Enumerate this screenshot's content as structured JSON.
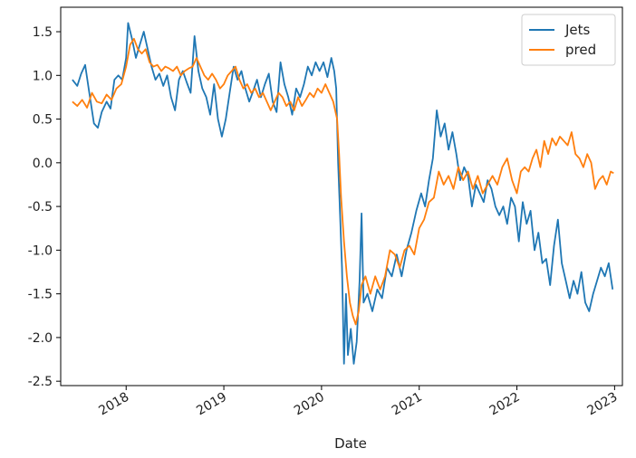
{
  "chart_data": {
    "type": "line",
    "title": "",
    "xlabel": "Date",
    "ylabel": "",
    "x_ticks": [
      "2018",
      "2019",
      "2020",
      "2021",
      "2022",
      "2023"
    ],
    "y_ticks": [
      -2.5,
      -2.0,
      -1.5,
      -1.0,
      -0.5,
      0.0,
      0.5,
      1.0,
      1.5
    ],
    "xlim": [
      2017.33,
      2023.08
    ],
    "ylim": [
      -2.55,
      1.78
    ],
    "grid": false,
    "legend": "top-right",
    "series": [
      {
        "name": "Jets",
        "color": "#1f77b4",
        "points": [
          [
            2017.45,
            0.95
          ],
          [
            2017.5,
            0.88
          ],
          [
            2017.54,
            1.02
          ],
          [
            2017.58,
            1.12
          ],
          [
            2017.62,
            0.82
          ],
          [
            2017.67,
            0.45
          ],
          [
            2017.71,
            0.4
          ],
          [
            2017.75,
            0.58
          ],
          [
            2017.8,
            0.7
          ],
          [
            2017.84,
            0.62
          ],
          [
            2017.88,
            0.95
          ],
          [
            2017.92,
            1.0
          ],
          [
            2017.96,
            0.95
          ],
          [
            2018.0,
            1.2
          ],
          [
            2018.02,
            1.6
          ],
          [
            2018.06,
            1.42
          ],
          [
            2018.1,
            1.2
          ],
          [
            2018.14,
            1.35
          ],
          [
            2018.18,
            1.5
          ],
          [
            2018.22,
            1.3
          ],
          [
            2018.26,
            1.1
          ],
          [
            2018.3,
            0.95
          ],
          [
            2018.34,
            1.02
          ],
          [
            2018.38,
            0.88
          ],
          [
            2018.42,
            1.0
          ],
          [
            2018.46,
            0.75
          ],
          [
            2018.5,
            0.6
          ],
          [
            2018.54,
            0.95
          ],
          [
            2018.58,
            1.05
          ],
          [
            2018.62,
            0.92
          ],
          [
            2018.66,
            0.8
          ],
          [
            2018.7,
            1.45
          ],
          [
            2018.74,
            1.05
          ],
          [
            2018.78,
            0.85
          ],
          [
            2018.82,
            0.75
          ],
          [
            2018.86,
            0.55
          ],
          [
            2018.9,
            0.9
          ],
          [
            2018.94,
            0.5
          ],
          [
            2018.98,
            0.3
          ],
          [
            2019.02,
            0.5
          ],
          [
            2019.06,
            0.8
          ],
          [
            2019.1,
            1.1
          ],
          [
            2019.14,
            0.95
          ],
          [
            2019.18,
            1.05
          ],
          [
            2019.22,
            0.85
          ],
          [
            2019.26,
            0.7
          ],
          [
            2019.3,
            0.82
          ],
          [
            2019.34,
            0.95
          ],
          [
            2019.38,
            0.75
          ],
          [
            2019.42,
            0.9
          ],
          [
            2019.46,
            1.02
          ],
          [
            2019.5,
            0.7
          ],
          [
            2019.54,
            0.58
          ],
          [
            2019.58,
            1.15
          ],
          [
            2019.62,
            0.9
          ],
          [
            2019.66,
            0.75
          ],
          [
            2019.7,
            0.55
          ],
          [
            2019.74,
            0.85
          ],
          [
            2019.78,
            0.75
          ],
          [
            2019.82,
            0.9
          ],
          [
            2019.86,
            1.1
          ],
          [
            2019.9,
            1.0
          ],
          [
            2019.94,
            1.15
          ],
          [
            2019.98,
            1.05
          ],
          [
            2020.02,
            1.15
          ],
          [
            2020.06,
            0.98
          ],
          [
            2020.1,
            1.2
          ],
          [
            2020.13,
            1.05
          ],
          [
            2020.15,
            0.85
          ],
          [
            2020.17,
            0.0
          ],
          [
            2020.19,
            -0.6
          ],
          [
            2020.21,
            -1.2
          ],
          [
            2020.23,
            -2.3
          ],
          [
            2020.25,
            -1.5
          ],
          [
            2020.27,
            -2.2
          ],
          [
            2020.3,
            -1.9
          ],
          [
            2020.33,
            -2.3
          ],
          [
            2020.36,
            -2.05
          ],
          [
            2020.39,
            -1.35
          ],
          [
            2020.41,
            -0.58
          ],
          [
            2020.43,
            -1.6
          ],
          [
            2020.47,
            -1.5
          ],
          [
            2020.52,
            -1.7
          ],
          [
            2020.57,
            -1.45
          ],
          [
            2020.62,
            -1.55
          ],
          [
            2020.67,
            -1.2
          ],
          [
            2020.72,
            -1.3
          ],
          [
            2020.77,
            -1.05
          ],
          [
            2020.82,
            -1.3
          ],
          [
            2020.87,
            -1.0
          ],
          [
            2020.92,
            -0.8
          ],
          [
            2020.97,
            -0.55
          ],
          [
            2021.02,
            -0.35
          ],
          [
            2021.06,
            -0.5
          ],
          [
            2021.1,
            -0.2
          ],
          [
            2021.14,
            0.05
          ],
          [
            2021.18,
            0.6
          ],
          [
            2021.22,
            0.3
          ],
          [
            2021.26,
            0.45
          ],
          [
            2021.3,
            0.15
          ],
          [
            2021.34,
            0.35
          ],
          [
            2021.38,
            0.1
          ],
          [
            2021.42,
            -0.2
          ],
          [
            2021.46,
            -0.05
          ],
          [
            2021.5,
            -0.15
          ],
          [
            2021.54,
            -0.5
          ],
          [
            2021.58,
            -0.25
          ],
          [
            2021.62,
            -0.35
          ],
          [
            2021.66,
            -0.45
          ],
          [
            2021.7,
            -0.2
          ],
          [
            2021.74,
            -0.3
          ],
          [
            2021.78,
            -0.5
          ],
          [
            2021.82,
            -0.6
          ],
          [
            2021.86,
            -0.5
          ],
          [
            2021.9,
            -0.7
          ],
          [
            2021.94,
            -0.4
          ],
          [
            2021.98,
            -0.5
          ],
          [
            2022.02,
            -0.9
          ],
          [
            2022.06,
            -0.45
          ],
          [
            2022.1,
            -0.7
          ],
          [
            2022.14,
            -0.55
          ],
          [
            2022.18,
            -1.0
          ],
          [
            2022.22,
            -0.8
          ],
          [
            2022.26,
            -1.15
          ],
          [
            2022.3,
            -1.1
          ],
          [
            2022.34,
            -1.4
          ],
          [
            2022.38,
            -0.95
          ],
          [
            2022.42,
            -0.65
          ],
          [
            2022.46,
            -1.15
          ],
          [
            2022.5,
            -1.35
          ],
          [
            2022.54,
            -1.55
          ],
          [
            2022.58,
            -1.35
          ],
          [
            2022.62,
            -1.5
          ],
          [
            2022.66,
            -1.25
          ],
          [
            2022.7,
            -1.6
          ],
          [
            2022.74,
            -1.7
          ],
          [
            2022.78,
            -1.5
          ],
          [
            2022.82,
            -1.35
          ],
          [
            2022.86,
            -1.2
          ],
          [
            2022.9,
            -1.3
          ],
          [
            2022.94,
            -1.15
          ],
          [
            2022.98,
            -1.45
          ]
        ]
      },
      {
        "name": "pred",
        "color": "#ff7f0e",
        "points": [
          [
            2017.45,
            0.7
          ],
          [
            2017.5,
            0.65
          ],
          [
            2017.55,
            0.72
          ],
          [
            2017.6,
            0.63
          ],
          [
            2017.65,
            0.8
          ],
          [
            2017.7,
            0.7
          ],
          [
            2017.75,
            0.68
          ],
          [
            2017.8,
            0.78
          ],
          [
            2017.85,
            0.72
          ],
          [
            2017.9,
            0.85
          ],
          [
            2017.95,
            0.9
          ],
          [
            2018.0,
            1.1
          ],
          [
            2018.04,
            1.35
          ],
          [
            2018.08,
            1.42
          ],
          [
            2018.12,
            1.3
          ],
          [
            2018.16,
            1.25
          ],
          [
            2018.2,
            1.3
          ],
          [
            2018.24,
            1.15
          ],
          [
            2018.28,
            1.1
          ],
          [
            2018.32,
            1.12
          ],
          [
            2018.36,
            1.05
          ],
          [
            2018.4,
            1.1
          ],
          [
            2018.44,
            1.08
          ],
          [
            2018.48,
            1.05
          ],
          [
            2018.52,
            1.1
          ],
          [
            2018.56,
            1.0
          ],
          [
            2018.6,
            1.05
          ],
          [
            2018.64,
            1.08
          ],
          [
            2018.68,
            1.1
          ],
          [
            2018.72,
            1.2
          ],
          [
            2018.76,
            1.1
          ],
          [
            2018.8,
            1.0
          ],
          [
            2018.84,
            0.95
          ],
          [
            2018.88,
            1.02
          ],
          [
            2018.92,
            0.95
          ],
          [
            2018.96,
            0.85
          ],
          [
            2019.0,
            0.9
          ],
          [
            2019.04,
            1.0
          ],
          [
            2019.08,
            1.05
          ],
          [
            2019.12,
            1.1
          ],
          [
            2019.16,
            0.95
          ],
          [
            2019.2,
            0.85
          ],
          [
            2019.24,
            0.9
          ],
          [
            2019.28,
            0.8
          ],
          [
            2019.32,
            0.85
          ],
          [
            2019.36,
            0.75
          ],
          [
            2019.4,
            0.8
          ],
          [
            2019.44,
            0.7
          ],
          [
            2019.48,
            0.6
          ],
          [
            2019.52,
            0.7
          ],
          [
            2019.56,
            0.8
          ],
          [
            2019.6,
            0.75
          ],
          [
            2019.64,
            0.65
          ],
          [
            2019.68,
            0.7
          ],
          [
            2019.72,
            0.6
          ],
          [
            2019.76,
            0.75
          ],
          [
            2019.8,
            0.65
          ],
          [
            2019.84,
            0.72
          ],
          [
            2019.88,
            0.8
          ],
          [
            2019.92,
            0.75
          ],
          [
            2019.96,
            0.85
          ],
          [
            2020.0,
            0.8
          ],
          [
            2020.04,
            0.9
          ],
          [
            2020.08,
            0.8
          ],
          [
            2020.12,
            0.7
          ],
          [
            2020.16,
            0.5
          ],
          [
            2020.18,
            0.1
          ],
          [
            2020.2,
            -0.4
          ],
          [
            2020.23,
            -0.9
          ],
          [
            2020.26,
            -1.3
          ],
          [
            2020.29,
            -1.6
          ],
          [
            2020.32,
            -1.75
          ],
          [
            2020.35,
            -1.85
          ],
          [
            2020.38,
            -1.7
          ],
          [
            2020.41,
            -1.4
          ],
          [
            2020.45,
            -1.3
          ],
          [
            2020.5,
            -1.5
          ],
          [
            2020.55,
            -1.3
          ],
          [
            2020.6,
            -1.45
          ],
          [
            2020.65,
            -1.3
          ],
          [
            2020.7,
            -1.0
          ],
          [
            2020.75,
            -1.05
          ],
          [
            2020.8,
            -1.2
          ],
          [
            2020.85,
            -1.0
          ],
          [
            2020.9,
            -0.95
          ],
          [
            2020.95,
            -1.05
          ],
          [
            2021.0,
            -0.75
          ],
          [
            2021.05,
            -0.65
          ],
          [
            2021.1,
            -0.45
          ],
          [
            2021.15,
            -0.4
          ],
          [
            2021.2,
            -0.1
          ],
          [
            2021.25,
            -0.25
          ],
          [
            2021.3,
            -0.15
          ],
          [
            2021.35,
            -0.3
          ],
          [
            2021.4,
            -0.05
          ],
          [
            2021.45,
            -0.2
          ],
          [
            2021.5,
            -0.1
          ],
          [
            2021.55,
            -0.3
          ],
          [
            2021.6,
            -0.15
          ],
          [
            2021.65,
            -0.35
          ],
          [
            2021.7,
            -0.25
          ],
          [
            2021.75,
            -0.15
          ],
          [
            2021.8,
            -0.25
          ],
          [
            2021.85,
            -0.05
          ],
          [
            2021.9,
            0.05
          ],
          [
            2021.95,
            -0.2
          ],
          [
            2022.0,
            -0.35
          ],
          [
            2022.04,
            -0.1
          ],
          [
            2022.08,
            -0.05
          ],
          [
            2022.12,
            -0.1
          ],
          [
            2022.16,
            0.05
          ],
          [
            2022.2,
            0.15
          ],
          [
            2022.24,
            -0.05
          ],
          [
            2022.28,
            0.25
          ],
          [
            2022.32,
            0.1
          ],
          [
            2022.36,
            0.28
          ],
          [
            2022.4,
            0.2
          ],
          [
            2022.44,
            0.3
          ],
          [
            2022.48,
            0.25
          ],
          [
            2022.52,
            0.2
          ],
          [
            2022.56,
            0.35
          ],
          [
            2022.6,
            0.1
          ],
          [
            2022.64,
            0.05
          ],
          [
            2022.68,
            -0.05
          ],
          [
            2022.72,
            0.1
          ],
          [
            2022.76,
            0.0
          ],
          [
            2022.8,
            -0.3
          ],
          [
            2022.84,
            -0.2
          ],
          [
            2022.88,
            -0.15
          ],
          [
            2022.92,
            -0.25
          ],
          [
            2022.96,
            -0.1
          ],
          [
            2022.99,
            -0.12
          ]
        ]
      }
    ]
  }
}
